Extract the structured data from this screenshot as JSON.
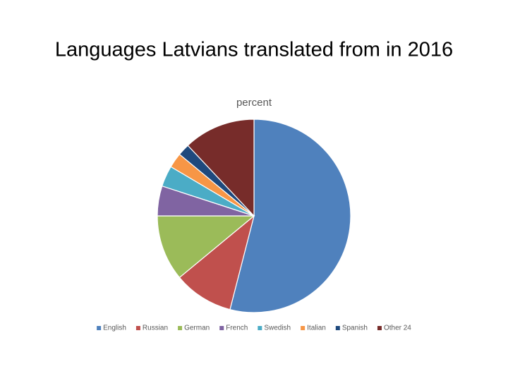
{
  "title": "Languages Latvians translated from in 2016",
  "chart_data": {
    "type": "pie",
    "title": "percent",
    "categories": [
      "English",
      "Russian",
      "German",
      "French",
      "Swedish",
      "Italian",
      "Spanish",
      "Other 24"
    ],
    "values": [
      54,
      10,
      11,
      5,
      3.5,
      2.5,
      2,
      12
    ],
    "colors": [
      "#4f81bd",
      "#c0504d",
      "#9bbb59",
      "#8064a2",
      "#4bacc6",
      "#f79646",
      "#1f497d",
      "#772c2a"
    ],
    "legend": "bottom"
  }
}
